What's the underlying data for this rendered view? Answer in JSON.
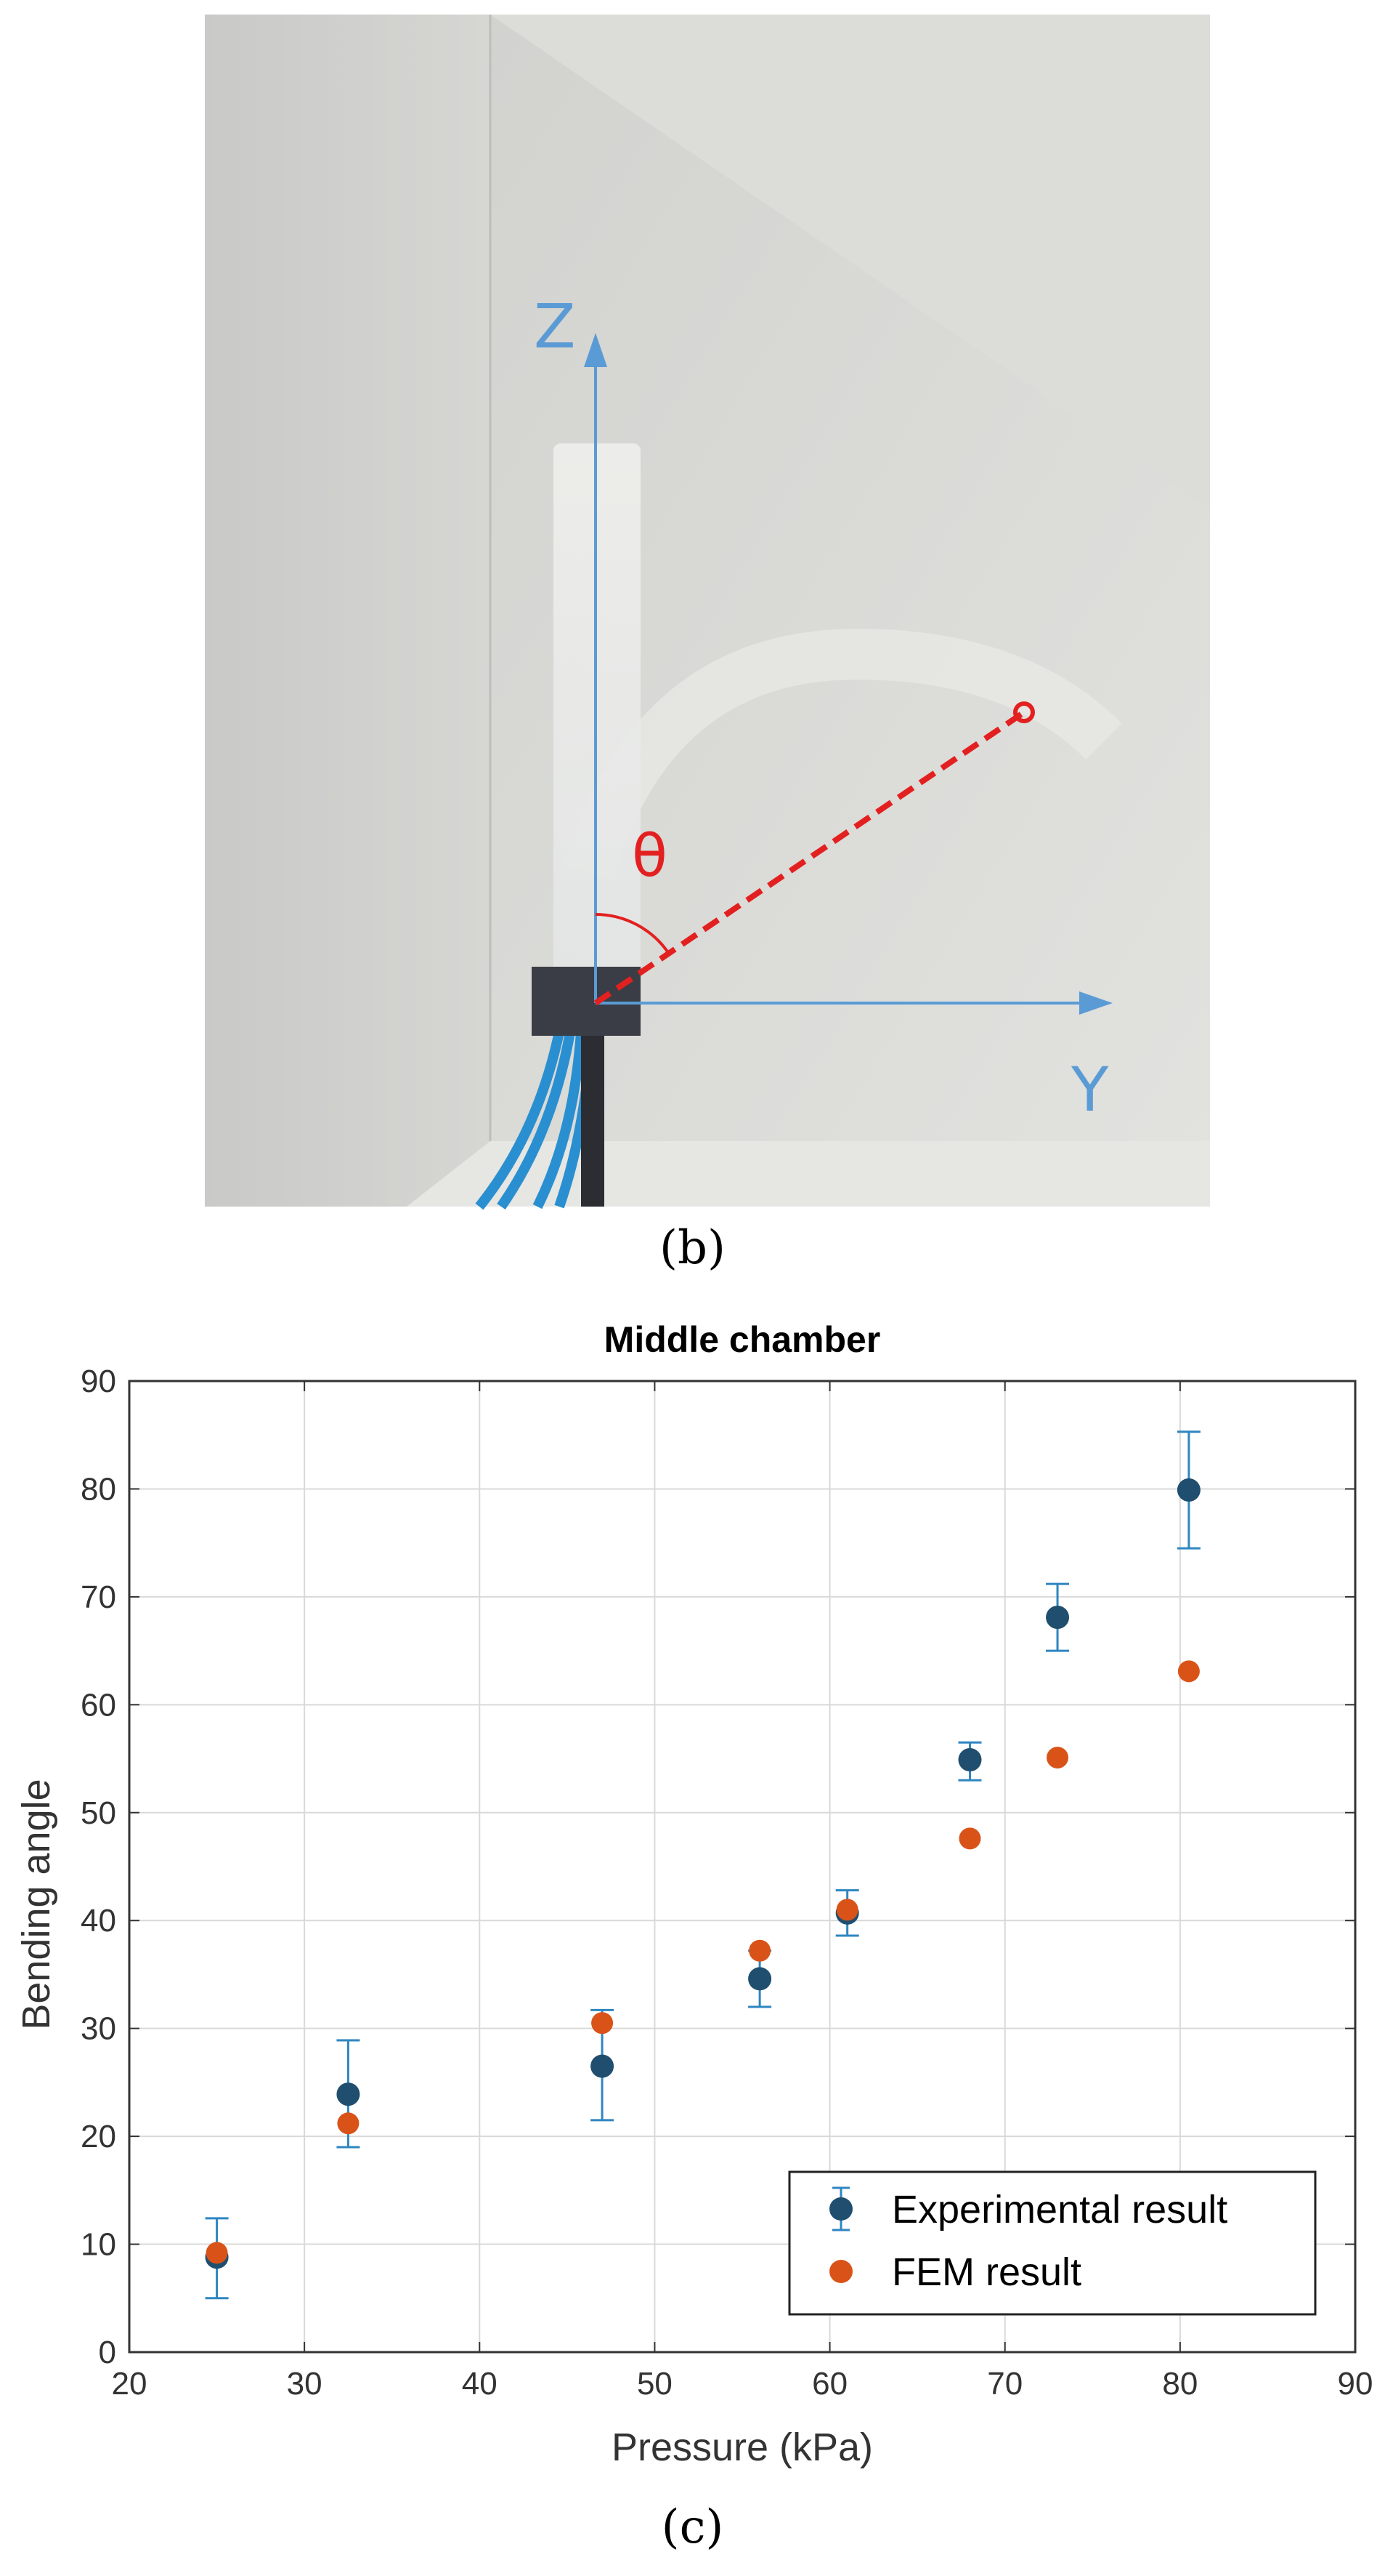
{
  "figure": {
    "panel_b": {
      "caption": "(b)",
      "axis_z_label": "Z",
      "axis_y_label": "Y",
      "angle_label": "θ",
      "colors": {
        "axis": "#5b9bd5",
        "angle": "#e32020",
        "tubing": "#2a8fd0",
        "base_block": "#3a3d45"
      }
    },
    "panel_c": {
      "caption": "(c)"
    }
  },
  "chart_data": {
    "type": "scatter",
    "title": "Middle chamber",
    "xlabel": "Pressure (kPa)",
    "ylabel": "Bending angle",
    "xlim": [
      20,
      90
    ],
    "ylim": [
      0,
      90
    ],
    "xticks": [
      20,
      30,
      40,
      50,
      60,
      70,
      80,
      90
    ],
    "yticks": [
      0,
      10,
      20,
      30,
      40,
      50,
      60,
      70,
      80,
      90
    ],
    "grid": true,
    "legend": "bottom-right",
    "series": [
      {
        "name": "Experimental result",
        "color": "#1f4e6e",
        "errorbar_color": "#2e86c1",
        "points": [
          {
            "x": 25,
            "y": 8.8,
            "err_low": 3.8,
            "err_high": 3.6
          },
          {
            "x": 32.5,
            "y": 23.9,
            "err_low": 4.9,
            "err_high": 5.0
          },
          {
            "x": 47,
            "y": 26.5,
            "err_low": 5.0,
            "err_high": 5.2
          },
          {
            "x": 56,
            "y": 34.6,
            "err_low": 2.6,
            "err_high": 2.6
          },
          {
            "x": 61,
            "y": 40.7,
            "err_low": 2.1,
            "err_high": 2.1
          },
          {
            "x": 68,
            "y": 54.9,
            "err_low": 1.9,
            "err_high": 1.6
          },
          {
            "x": 73,
            "y": 68.1,
            "err_low": 3.1,
            "err_high": 3.1
          },
          {
            "x": 80.5,
            "y": 79.9,
            "err_low": 5.4,
            "err_high": 5.4
          }
        ]
      },
      {
        "name": "FEM result",
        "color": "#d95319",
        "points": [
          {
            "x": 25,
            "y": 9.2
          },
          {
            "x": 32.5,
            "y": 21.2
          },
          {
            "x": 47,
            "y": 30.5
          },
          {
            "x": 56,
            "y": 37.2
          },
          {
            "x": 61,
            "y": 41.0
          },
          {
            "x": 68,
            "y": 47.6
          },
          {
            "x": 73,
            "y": 55.1
          },
          {
            "x": 80.5,
            "y": 63.1
          }
        ]
      }
    ]
  }
}
